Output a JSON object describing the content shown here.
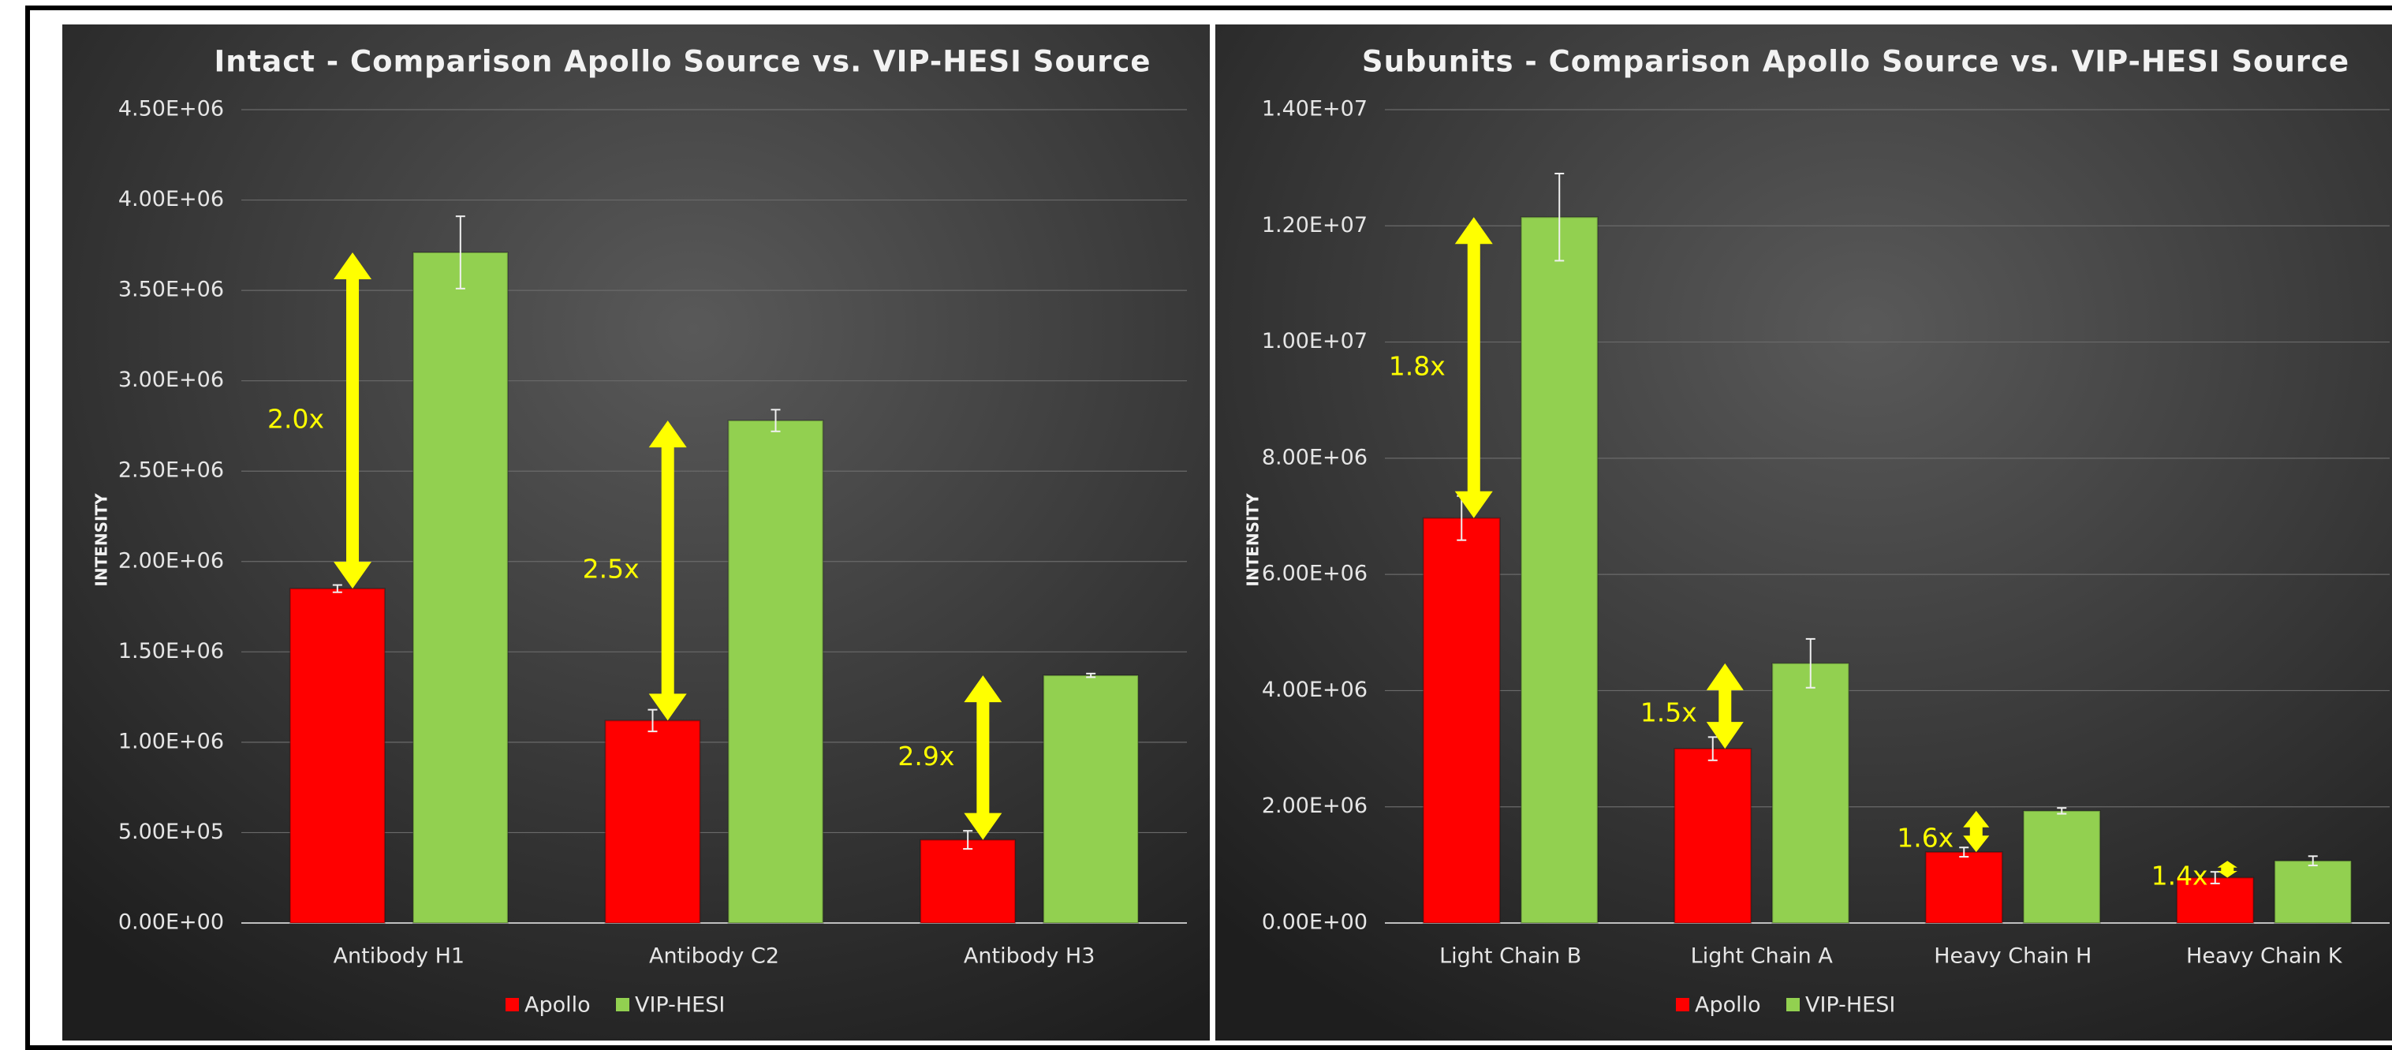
{
  "chart_data": [
    {
      "type": "bar",
      "title": "Intact - Comparison Apollo Source vs. VIP-HESI Source",
      "y_label": "INTENSITY",
      "categories": [
        "Antibody H1",
        "Antibody C2",
        "Antibody H3"
      ],
      "series": [
        {
          "name": "Apollo",
          "color": "#ff0000",
          "values": [
            1850000,
            1120000,
            460000
          ],
          "errors": [
            20000,
            60000,
            50000
          ]
        },
        {
          "name": "VIP-HESI",
          "color": "#92d050",
          "values": [
            3710000,
            2780000,
            1370000
          ],
          "errors": [
            200000,
            60000,
            10000
          ]
        }
      ],
      "annotations": [
        "2.0x",
        "2.5x",
        "2.9x"
      ],
      "ylim": [
        0,
        4500000
      ],
      "yticks": [
        {
          "value": 0,
          "label": "0.00E+00"
        },
        {
          "value": 500000,
          "label": "5.00E+05"
        },
        {
          "value": 1000000,
          "label": "1.00E+06"
        },
        {
          "value": 1500000,
          "label": "1.50E+06"
        },
        {
          "value": 2000000,
          "label": "2.00E+06"
        },
        {
          "value": 2500000,
          "label": "2.50E+06"
        },
        {
          "value": 3000000,
          "label": "3.00E+06"
        },
        {
          "value": 3500000,
          "label": "3.50E+06"
        },
        {
          "value": 4000000,
          "label": "4.00E+06"
        },
        {
          "value": 4500000,
          "label": "4.50E+06"
        }
      ],
      "grid": true,
      "legend": "bottom"
    },
    {
      "type": "bar",
      "title": "Subunits - Comparison Apollo Source vs. VIP-HESI Source",
      "y_label": "INTENSITY",
      "categories": [
        "Light Chain B",
        "Light Chain A",
        "Heavy Chain H",
        "Heavy Chain K"
      ],
      "series": [
        {
          "name": "Apollo",
          "color": "#ff0000",
          "values": [
            6970000,
            3000000,
            1220000,
            780000
          ],
          "errors": [
            380000,
            200000,
            80000,
            100000
          ]
        },
        {
          "name": "VIP-HESI",
          "color": "#92d050",
          "values": [
            12150000,
            4470000,
            1930000,
            1070000
          ],
          "errors": [
            750000,
            420000,
            50000,
            80000
          ]
        }
      ],
      "annotations": [
        "1.8x",
        "1.5x",
        "1.6x",
        "1.4x"
      ],
      "ylim": [
        0,
        14000000
      ],
      "yticks": [
        {
          "value": 0,
          "label": "0.00E+00"
        },
        {
          "value": 2000000,
          "label": "2.00E+06"
        },
        {
          "value": 4000000,
          "label": "4.00E+06"
        },
        {
          "value": 6000000,
          "label": "6.00E+06"
        },
        {
          "value": 8000000,
          "label": "8.00E+06"
        },
        {
          "value": 10000000,
          "label": "1.00E+07"
        },
        {
          "value": 12000000,
          "label": "1.20E+07"
        },
        {
          "value": 14000000,
          "label": "1.40E+07"
        }
      ],
      "grid": true,
      "legend": "bottom"
    }
  ]
}
